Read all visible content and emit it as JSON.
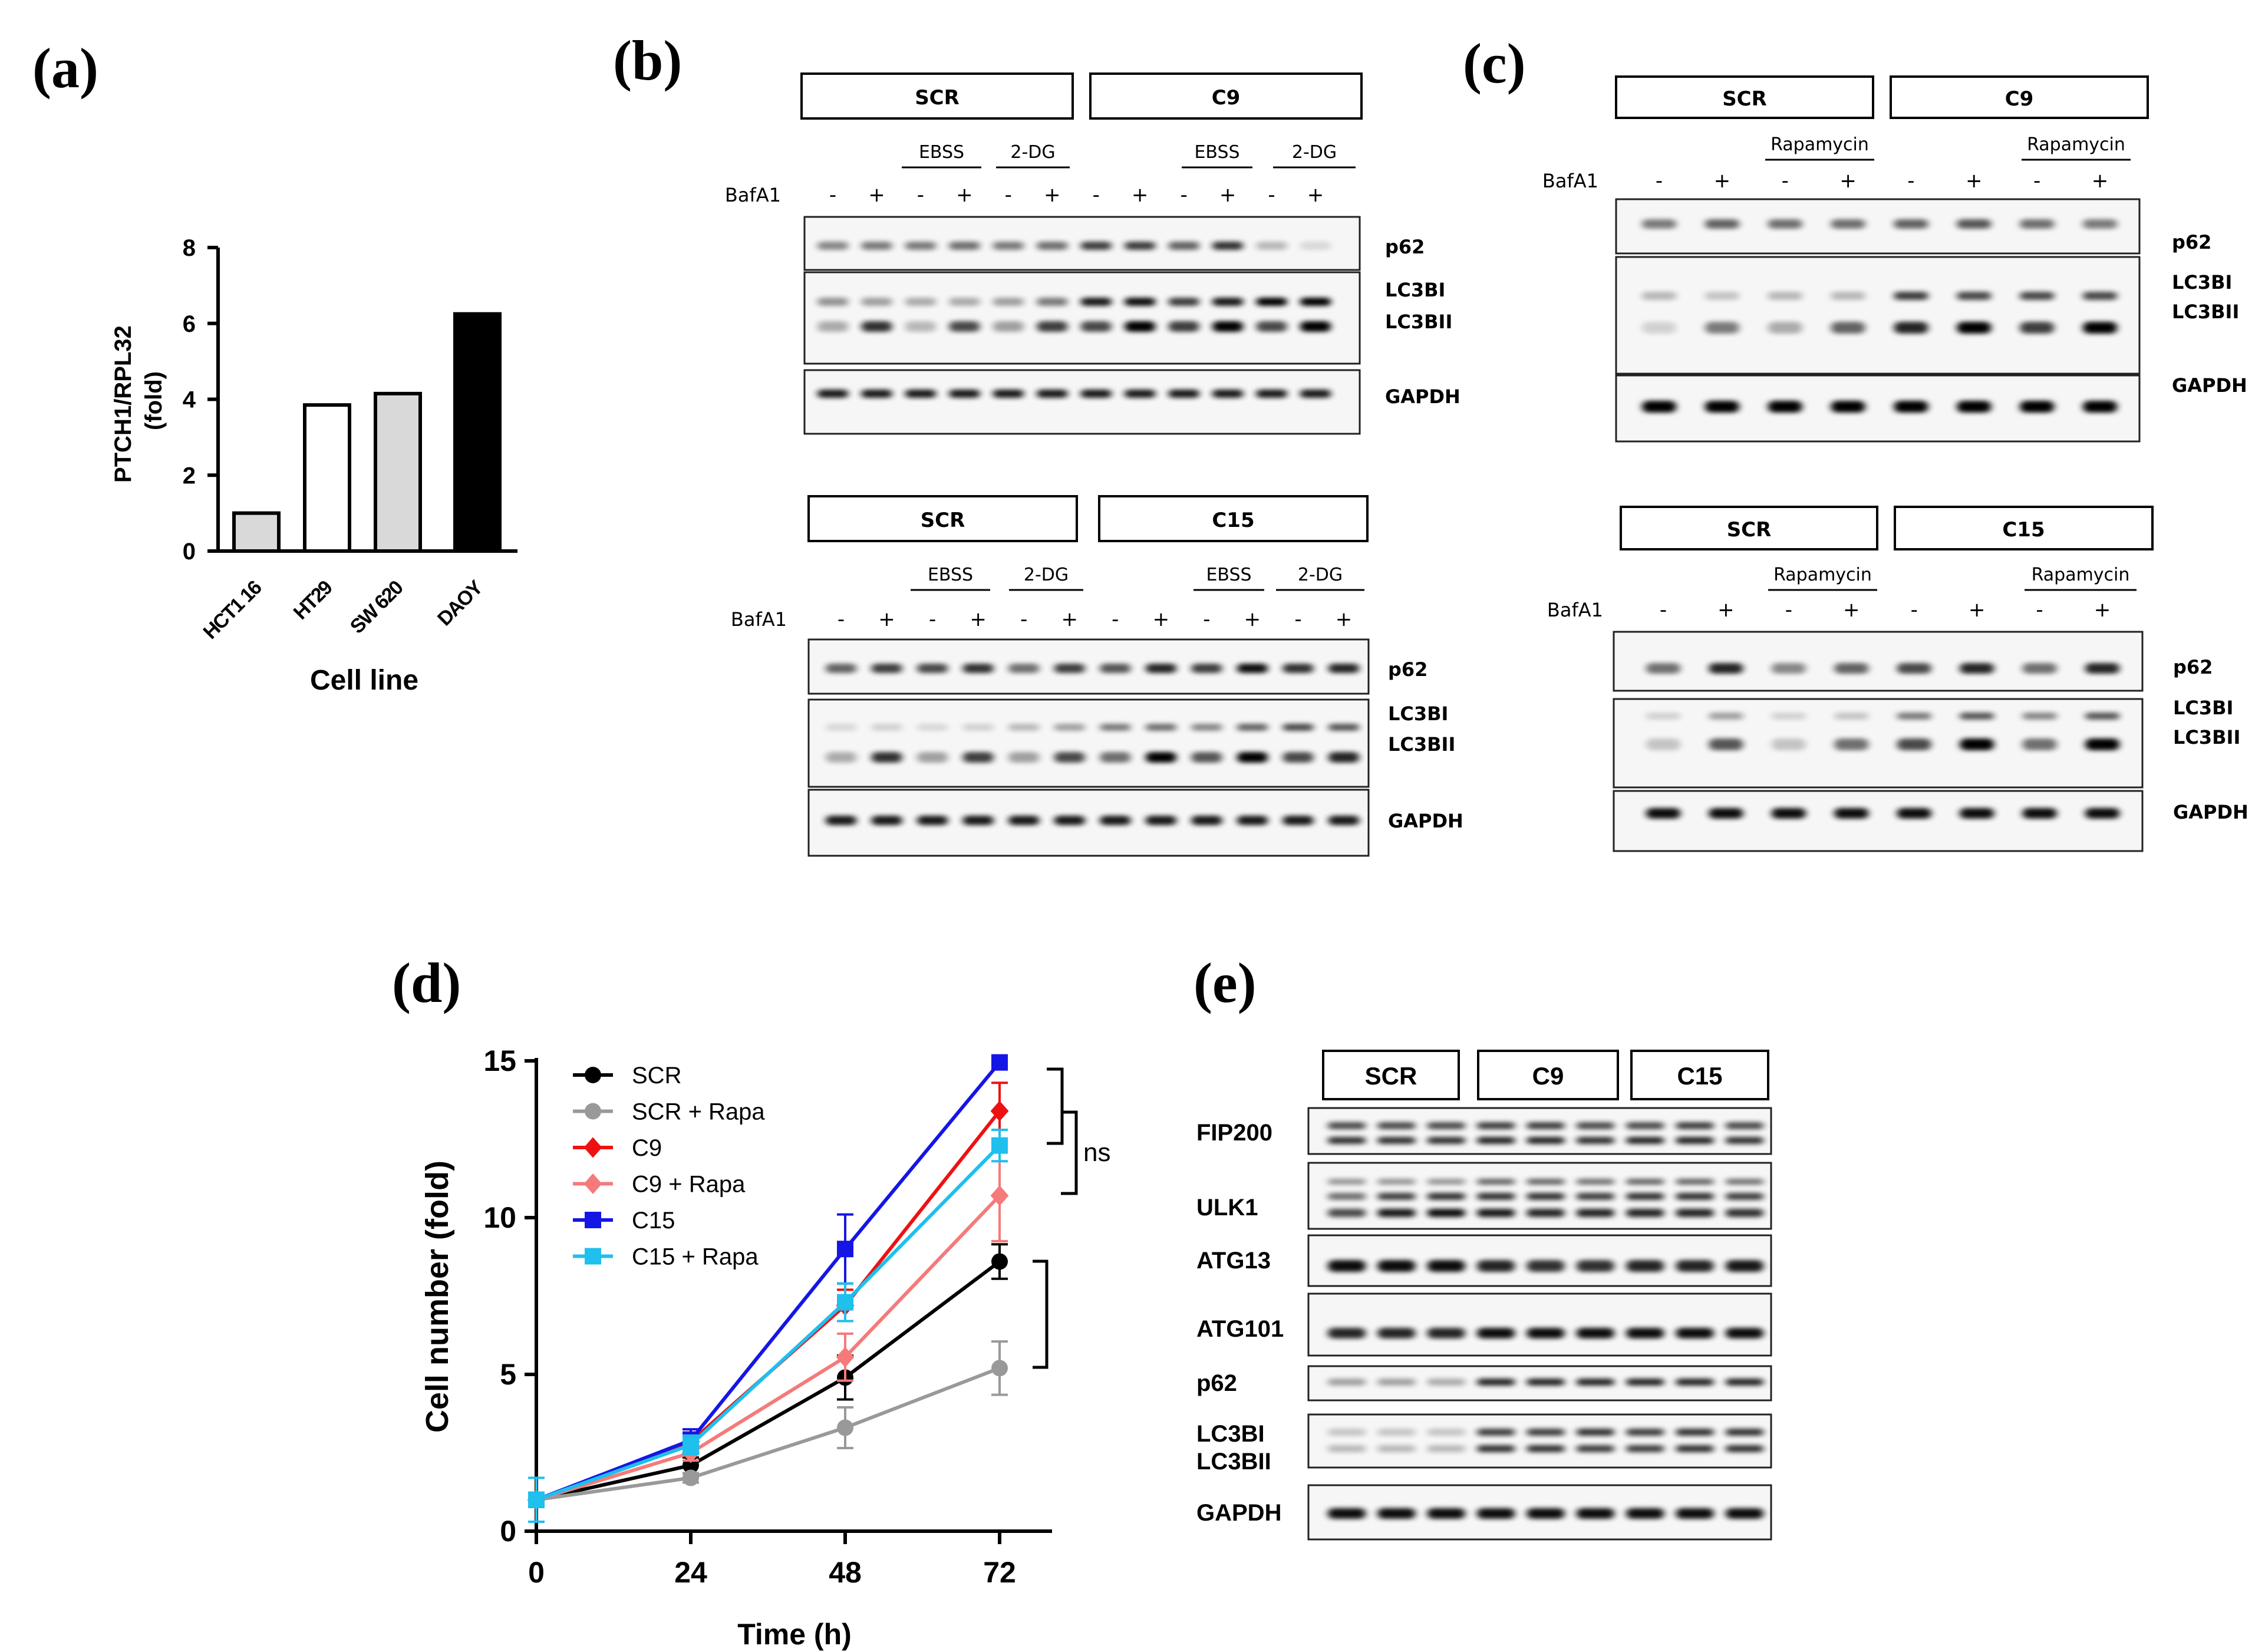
{
  "panels": {
    "a": "(a)",
    "b": "(b)",
    "c": "(c)",
    "d": "(d)",
    "e": "(e)"
  },
  "colors": {
    "bar_gray": "#d9d9d9",
    "scr": "#000000",
    "scr_rapa": "#999999",
    "c9": "#ee1111",
    "c9_rapa": "#f57a7a",
    "c15": "#1515e6",
    "c15_rapa": "#1fbfee"
  },
  "chart_data": [
    {
      "type": "bar",
      "panel": "a",
      "categories": [
        "HCT1 16",
        "HT29",
        "SW 620",
        "DAOY"
      ],
      "values": [
        1.0,
        3.85,
        4.15,
        6.25
      ],
      "fills": [
        "gray",
        "white",
        "gray",
        "black"
      ],
      "title": "",
      "xlabel": "Cell line",
      "ylabel": "PTCH1/RPL32 (fold)",
      "ylabel_lines": [
        "PTCH1/RPL32",
        "(fold)"
      ],
      "ylim": [
        0,
        8
      ],
      "yticks": [
        "0",
        "2",
        "4",
        "6",
        "8"
      ]
    },
    {
      "type": "line",
      "panel": "d",
      "x": [
        0,
        24,
        48,
        72
      ],
      "xticks": [
        "0",
        "24",
        "48",
        "72"
      ],
      "xlabel": "Time (h)",
      "ylabel": "Cell number (fold)",
      "ylim": [
        0,
        15
      ],
      "yticks": [
        "0",
        "5",
        "10",
        "15"
      ],
      "series": [
        {
          "name": "SCR",
          "values": [
            1.0,
            2.1,
            4.9,
            8.6
          ],
          "errors": [
            0.1,
            0.25,
            0.7,
            0.55
          ],
          "marker": "circle",
          "color": "#000000"
        },
        {
          "name": "SCR + Rapa",
          "values": [
            1.0,
            1.7,
            3.3,
            5.2
          ],
          "errors": [
            0.1,
            0.15,
            0.65,
            0.85
          ],
          "marker": "circle",
          "color": "#999999"
        },
        {
          "name": "C9",
          "values": [
            1.0,
            2.85,
            7.2,
            13.4
          ],
          "errors": [
            0.1,
            0.3,
            0.5,
            0.9
          ],
          "marker": "diamond",
          "color": "#ee1111"
        },
        {
          "name": "C9 + Rapa",
          "values": [
            1.0,
            2.5,
            5.55,
            10.7
          ],
          "errors": [
            0.1,
            0.25,
            0.75,
            1.45
          ],
          "marker": "diamond",
          "color": "#f57a7a"
        },
        {
          "name": "C15",
          "values": [
            1.0,
            2.9,
            9.0,
            14.95
          ],
          "errors": [
            0.1,
            0.35,
            1.1,
            0.1
          ],
          "marker": "square",
          "color": "#1515e6"
        },
        {
          "name": "C15 + Rapa",
          "values": [
            1.0,
            2.75,
            7.3,
            12.3
          ],
          "errors": [
            0.7,
            0.3,
            0.6,
            0.5
          ],
          "marker": "square",
          "color": "#1fbfee"
        }
      ],
      "annotations": [
        "ns"
      ]
    }
  ],
  "blots": {
    "b_top": {
      "groups": [
        "SCR",
        "C9"
      ],
      "conds": [
        "EBSS",
        "2-DG",
        "EBSS",
        "2-DG"
      ],
      "treatment": "BafA1",
      "lanes": [
        "-",
        "+",
        "-",
        "+",
        "-",
        "+",
        "-",
        "+",
        "-",
        "+",
        "-",
        "+"
      ],
      "bands": [
        "p62",
        "LC3BI",
        "LC3BII",
        "GAPDH"
      ]
    },
    "b_bot": {
      "groups": [
        "SCR",
        "C15"
      ],
      "conds": [
        "EBSS",
        "2-DG",
        "EBSS",
        "2-DG"
      ],
      "treatment": "BafA1",
      "lanes": [
        "-",
        "+",
        "-",
        "+",
        "-",
        "+",
        "-",
        "+",
        "-",
        "+",
        "-",
        "+"
      ],
      "bands": [
        "p62",
        "LC3BI",
        "LC3BII",
        "GAPDH"
      ]
    },
    "c_top": {
      "groups": [
        "SCR",
        "C9"
      ],
      "conds": [
        "Rapamycin",
        "Rapamycin"
      ],
      "treatment": "BafA1",
      "lanes": [
        "-",
        "+",
        "-",
        "+",
        "-",
        "+",
        "-",
        "+"
      ],
      "bands": [
        "p62",
        "LC3BI",
        "LC3BII",
        "GAPDH"
      ]
    },
    "c_bot": {
      "groups": [
        "SCR",
        "C15"
      ],
      "conds": [
        "Rapamycin",
        "Rapamycin"
      ],
      "treatment": "BafA1",
      "lanes": [
        "-",
        "+",
        "-",
        "+",
        "-",
        "+",
        "-",
        "+"
      ],
      "bands": [
        "p62",
        "LC3BI",
        "LC3BII",
        "GAPDH"
      ]
    },
    "e": {
      "groups": [
        "SCR",
        "C9",
        "C15"
      ],
      "bands": [
        "FIP200",
        "ULK1",
        "ATG13",
        "ATG101",
        "p62",
        "LC3BI",
        "LC3BII",
        "GAPDH"
      ]
    }
  }
}
